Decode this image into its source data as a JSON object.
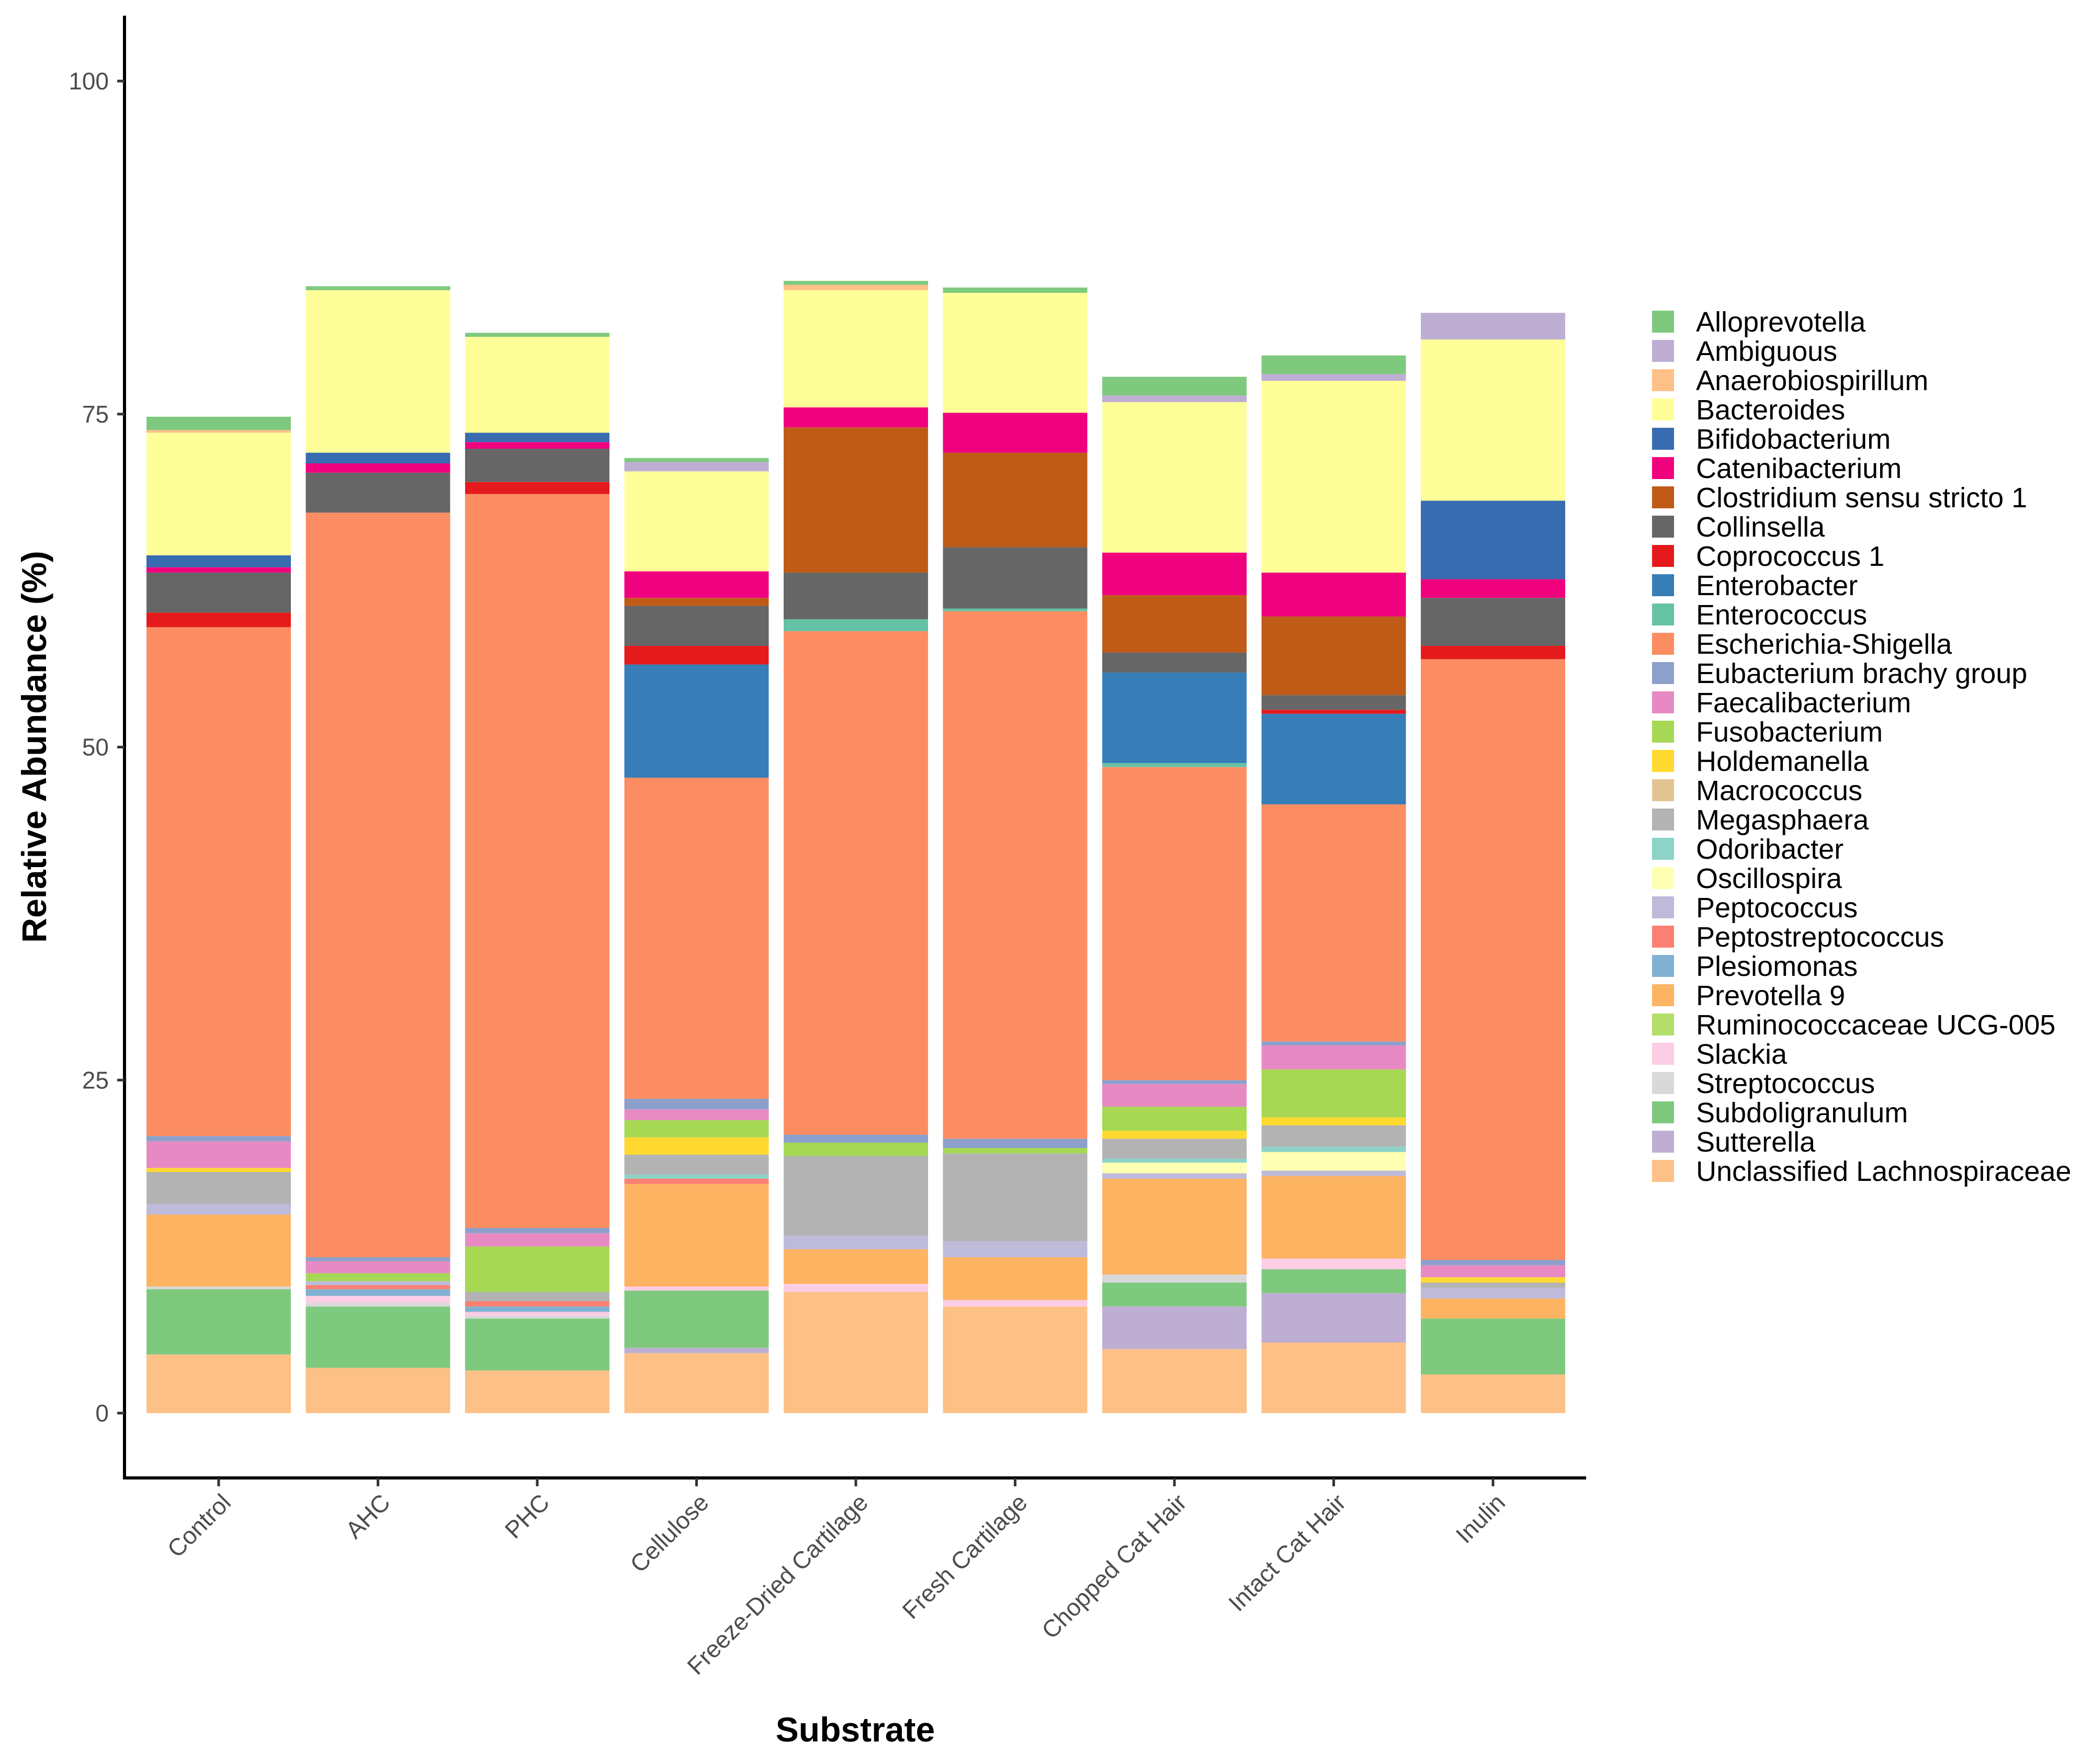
{
  "chart_data": {
    "type": "bar",
    "stacked": true,
    "title": "",
    "xlabel": "Substrate",
    "ylabel": "Relative Abundance (%)",
    "ylim": [
      -5,
      105
    ],
    "yticks": [
      0,
      25,
      50,
      75,
      100
    ],
    "grid": false,
    "legend_position": "right",
    "categories": [
      "Control",
      "AHC",
      "PHC",
      "Cellulose",
      "Freeze-Dried Cartilage",
      "Fresh Cartilage",
      "Chopped Cat Hair",
      "Intact Cat Hair",
      "Inulin"
    ],
    "series": [
      {
        "name": "Unclassified Lachnospiraceae",
        "color": "#FDC086",
        "values": [
          4.4,
          3.4,
          3.2,
          4.5,
          9.1,
          8.0,
          4.8,
          5.3,
          2.9
        ]
      },
      {
        "name": "Sutterella",
        "color": "#BEAED4",
        "values": [
          0.0,
          0.0,
          0.0,
          0.4,
          0.0,
          0.0,
          3.2,
          3.7,
          0.0
        ]
      },
      {
        "name": "Subdoligranulum",
        "color": "#7FC97F",
        "values": [
          4.9,
          4.6,
          3.9,
          4.3,
          0.0,
          0.0,
          1.8,
          1.8,
          4.2
        ]
      },
      {
        "name": "Streptococcus",
        "color": "#D9D9D9",
        "values": [
          0.2,
          0.3,
          0.2,
          0.0,
          0.0,
          0.0,
          0.6,
          0.0,
          0.0
        ]
      },
      {
        "name": "Slackia",
        "color": "#FCCDE5",
        "values": [
          0.0,
          0.5,
          0.3,
          0.3,
          0.6,
          0.5,
          0.0,
          0.8,
          0.0
        ]
      },
      {
        "name": "Ruminococcaceae UCG-005",
        "color": "#B3DE69",
        "values": [
          0.0,
          0.0,
          0.0,
          0.0,
          0.0,
          0.0,
          0.0,
          0.0,
          0.0
        ]
      },
      {
        "name": "Prevotella 9",
        "color": "#FDB462",
        "values": [
          5.4,
          0.0,
          0.0,
          7.7,
          2.6,
          3.2,
          7.2,
          6.2,
          1.5
        ]
      },
      {
        "name": "Plesiomonas",
        "color": "#80B1D3",
        "values": [
          0.0,
          0.5,
          0.4,
          0.0,
          0.0,
          0.0,
          0.0,
          0.0,
          0.0
        ]
      },
      {
        "name": "Peptostreptococcus",
        "color": "#FB8072",
        "values": [
          0.0,
          0.3,
          0.4,
          0.4,
          0.0,
          0.0,
          0.0,
          0.0,
          0.0
        ]
      },
      {
        "name": "Peptococcus",
        "color": "#BEBADA",
        "values": [
          0.8,
          0.3,
          0.0,
          0.0,
          1.0,
          1.2,
          0.4,
          0.4,
          0.8
        ]
      },
      {
        "name": "Oscillospira",
        "color": "#FFFFB3",
        "values": [
          0.0,
          0.0,
          0.0,
          0.0,
          0.0,
          0.0,
          0.8,
          1.4,
          0.0
        ]
      },
      {
        "name": "Odoribacter",
        "color": "#8DD3C7",
        "values": [
          0.0,
          0.0,
          0.0,
          0.3,
          0.0,
          0.0,
          0.3,
          0.4,
          0.0
        ]
      },
      {
        "name": "Megasphaera",
        "color": "#B3B3B3",
        "values": [
          2.4,
          0.0,
          0.7,
          1.5,
          6.0,
          6.6,
          1.5,
          1.6,
          0.4
        ]
      },
      {
        "name": "Macrococcus",
        "color": "#E5C494",
        "values": [
          0.0,
          0.0,
          0.0,
          0.0,
          0.0,
          0.0,
          0.0,
          0.0,
          0.0
        ]
      },
      {
        "name": "Holdemanella",
        "color": "#FFD92F",
        "values": [
          0.3,
          0.0,
          0.0,
          1.3,
          0.0,
          0.0,
          0.6,
          0.6,
          0.4
        ]
      },
      {
        "name": "Fusobacterium",
        "color": "#A6D854",
        "values": [
          0.0,
          0.6,
          3.4,
          1.3,
          1.0,
          0.4,
          1.8,
          3.6,
          0.0
        ]
      },
      {
        "name": "Faecalibacterium",
        "color": "#E78AC3",
        "values": [
          2.0,
          0.9,
          1.0,
          0.8,
          0.0,
          0.0,
          1.7,
          1.8,
          0.9
        ]
      },
      {
        "name": "Eubacterium brachy group",
        "color": "#8DA0CB",
        "values": [
          0.4,
          0.3,
          0.4,
          0.8,
          0.6,
          0.7,
          0.3,
          0.3,
          0.4
        ]
      },
      {
        "name": "Escherichia-Shigella",
        "color": "#FC8D62",
        "values": [
          38.2,
          55.9,
          55.1,
          24.1,
          37.8,
          39.6,
          23.5,
          17.8,
          45.1
        ]
      },
      {
        "name": "Enterococcus",
        "color": "#66C2A5",
        "values": [
          0.0,
          0.0,
          0.0,
          0.0,
          0.9,
          0.2,
          0.3,
          0.0,
          0.0
        ]
      },
      {
        "name": "Enterobacter",
        "color": "#377EB8",
        "values": [
          0.0,
          0.0,
          0.0,
          8.5,
          0.0,
          0.0,
          6.8,
          6.8,
          0.0
        ]
      },
      {
        "name": "Coprococcus 1",
        "color": "#E41A1C",
        "values": [
          1.1,
          0.0,
          0.9,
          1.4,
          0.0,
          0.0,
          0.0,
          0.3,
          1.0
        ]
      },
      {
        "name": "Collinsella",
        "color": "#666666",
        "values": [
          3.0,
          3.0,
          2.5,
          3.0,
          3.5,
          4.6,
          1.5,
          1.1,
          3.6
        ]
      },
      {
        "name": "Clostridium sensu stricto 1",
        "color": "#BF5B17",
        "values": [
          0.0,
          0.0,
          0.0,
          0.6,
          10.9,
          7.1,
          4.3,
          5.9,
          0.0
        ]
      },
      {
        "name": "Catenibacterium",
        "color": "#F0027F",
        "values": [
          0.4,
          0.7,
          0.5,
          2.0,
          1.5,
          3.0,
          3.2,
          3.3,
          1.4
        ]
      },
      {
        "name": "Bifidobacterium",
        "color": "#386CB0",
        "values": [
          0.9,
          0.8,
          0.7,
          0.0,
          0.0,
          0.0,
          0.0,
          0.0,
          5.9
        ]
      },
      {
        "name": "Bacteroides",
        "color": "#FFFF99",
        "values": [
          9.2,
          12.2,
          7.2,
          7.5,
          8.8,
          9.0,
          11.3,
          14.4,
          12.1
        ]
      },
      {
        "name": "Anaerobiospirillum",
        "color": "#FDC086",
        "values": [
          0.2,
          0.0,
          0.0,
          0.0,
          0.4,
          0.0,
          0.0,
          0.0,
          0.0
        ]
      },
      {
        "name": "Ambiguous",
        "color": "#BEAED4",
        "values": [
          0.0,
          0.0,
          0.0,
          0.7,
          0.0,
          0.0,
          0.5,
          0.5,
          2.0
        ]
      },
      {
        "name": "Alloprevotella",
        "color": "#7FC97F",
        "values": [
          1.0,
          0.3,
          0.3,
          0.3,
          0.3,
          0.4,
          1.4,
          1.4,
          0.0
        ]
      }
    ],
    "legend_entries": [
      {
        "name": "Alloprevotella",
        "color": "#7FC97F"
      },
      {
        "name": "Ambiguous",
        "color": "#BEAED4"
      },
      {
        "name": "Anaerobiospirillum",
        "color": "#FDC086"
      },
      {
        "name": "Bacteroides",
        "color": "#FFFF99"
      },
      {
        "name": "Bifidobacterium",
        "color": "#386CB0"
      },
      {
        "name": "Catenibacterium",
        "color": "#F0027F"
      },
      {
        "name": "Clostridium sensu stricto 1",
        "color": "#BF5B17"
      },
      {
        "name": "Collinsella",
        "color": "#666666"
      },
      {
        "name": "Coprococcus 1",
        "color": "#E41A1C"
      },
      {
        "name": "Enterobacter",
        "color": "#377EB8"
      },
      {
        "name": "Enterococcus",
        "color": "#66C2A5"
      },
      {
        "name": "Escherichia-Shigella",
        "color": "#FC8D62"
      },
      {
        "name": "Eubacterium brachy group",
        "color": "#8DA0CB"
      },
      {
        "name": "Faecalibacterium",
        "color": "#E78AC3"
      },
      {
        "name": "Fusobacterium",
        "color": "#A6D854"
      },
      {
        "name": "Holdemanella",
        "color": "#FFD92F"
      },
      {
        "name": "Macrococcus",
        "color": "#E5C494"
      },
      {
        "name": "Megasphaera",
        "color": "#B3B3B3"
      },
      {
        "name": "Odoribacter",
        "color": "#8DD3C7"
      },
      {
        "name": "Oscillospira",
        "color": "#FFFFB3"
      },
      {
        "name": "Peptococcus",
        "color": "#BEBADA"
      },
      {
        "name": "Peptostreptococcus",
        "color": "#FB8072"
      },
      {
        "name": "Plesiomonas",
        "color": "#80B1D3"
      },
      {
        "name": "Prevotella 9",
        "color": "#FDB462"
      },
      {
        "name": "Ruminococcaceae UCG-005",
        "color": "#B3DE69"
      },
      {
        "name": "Slackia",
        "color": "#FCCDE5"
      },
      {
        "name": "Streptococcus",
        "color": "#D9D9D9"
      },
      {
        "name": "Subdoligranulum",
        "color": "#7FC97F"
      },
      {
        "name": "Sutterella",
        "color": "#BEAED4"
      },
      {
        "name": "Unclassified Lachnospiraceae",
        "color": "#FDC086"
      }
    ]
  }
}
